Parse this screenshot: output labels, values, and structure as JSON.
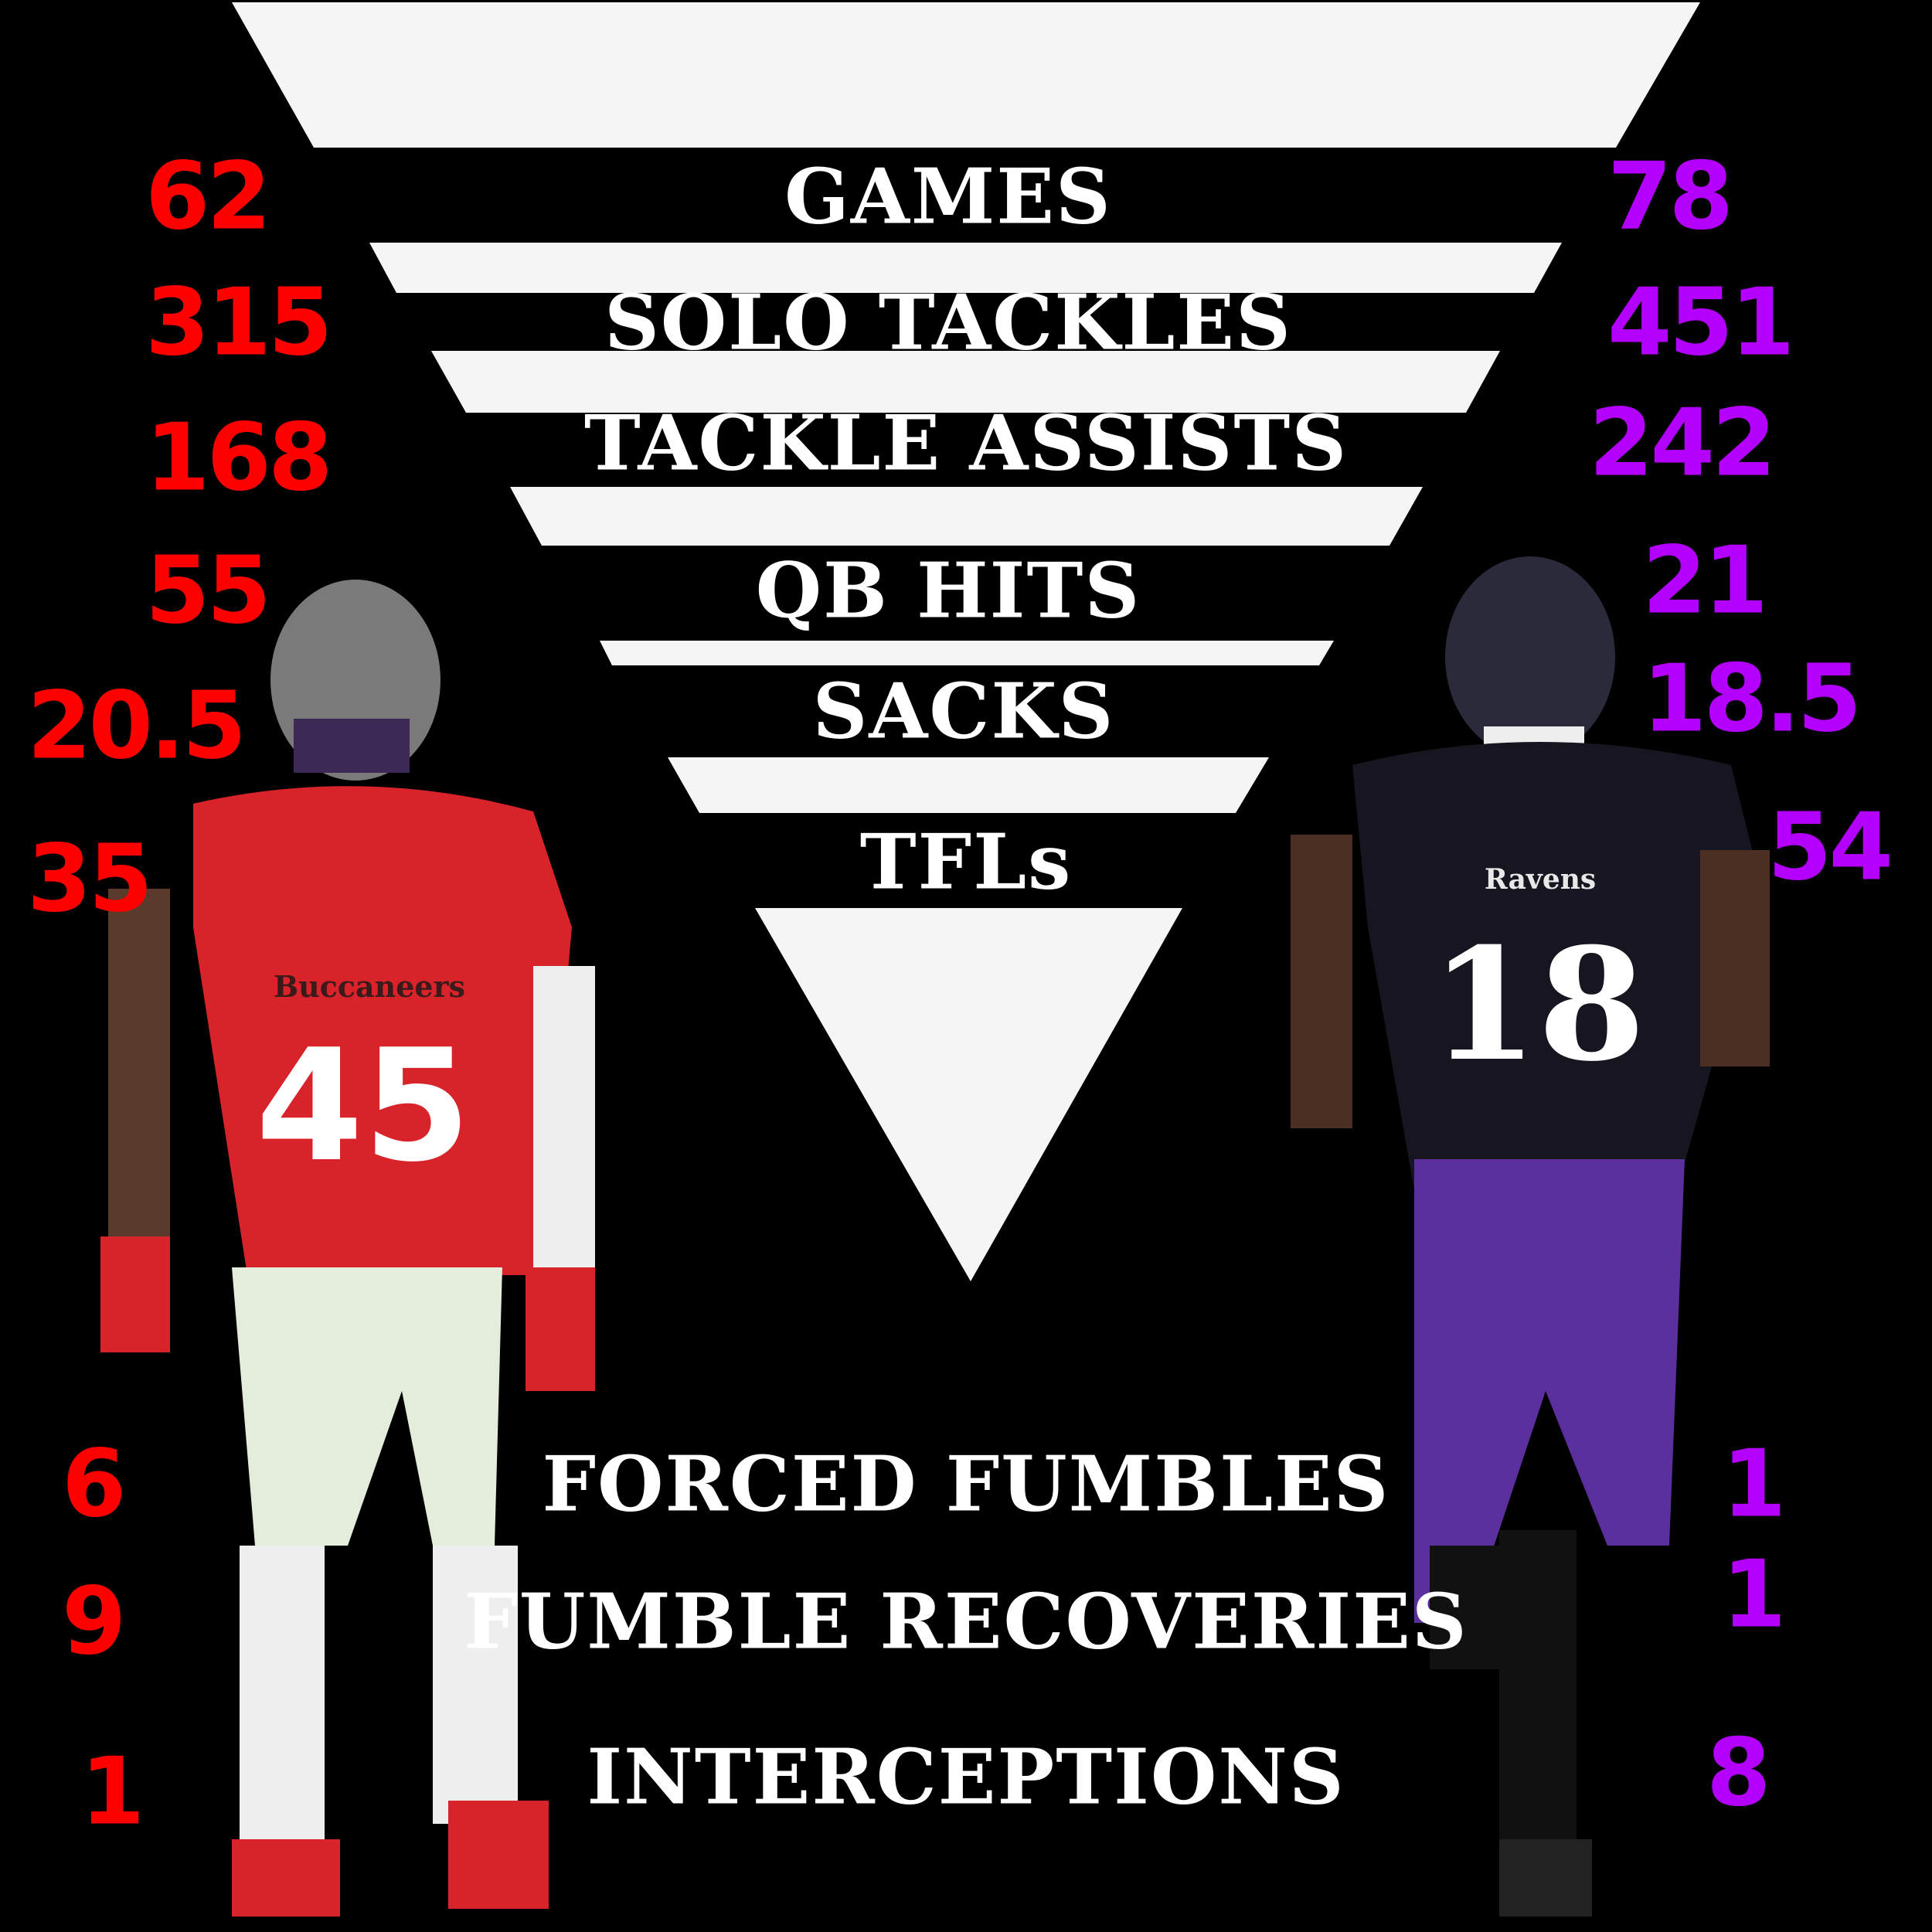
{
  "colors": {
    "left_player": "#ff0000",
    "right_player": "#b400ff",
    "background": "#000000",
    "shapes": "#f5f5f5"
  },
  "stats": [
    {
      "label": "GAMES",
      "left": "62",
      "right": "78"
    },
    {
      "label": "SOLO TACKLES",
      "left": "315",
      "right": "451"
    },
    {
      "label": "TACKLE ASSISTS",
      "left": "168",
      "right": "242"
    },
    {
      "label": "QB HITS",
      "left": "55",
      "right": "21"
    },
    {
      "label": "SACKS",
      "left": "20.5",
      "right": "18.5"
    },
    {
      "label": "TFLs",
      "left": "35",
      "right": "54"
    },
    {
      "label": "FORCED FUMBLES",
      "left": "6",
      "right": "1"
    },
    {
      "label": "FUMBLE RECOVERIES",
      "left": "9",
      "right": "1"
    },
    {
      "label": "INTERCEPTIONS",
      "left": "1",
      "right": "8"
    }
  ],
  "players": {
    "left": {
      "team": "Buccaneers",
      "jersey": "45",
      "image": "player-photo-red-45"
    },
    "right": {
      "team": "Ravens",
      "jersey": "18",
      "image": "player-photo-purple-18"
    }
  }
}
